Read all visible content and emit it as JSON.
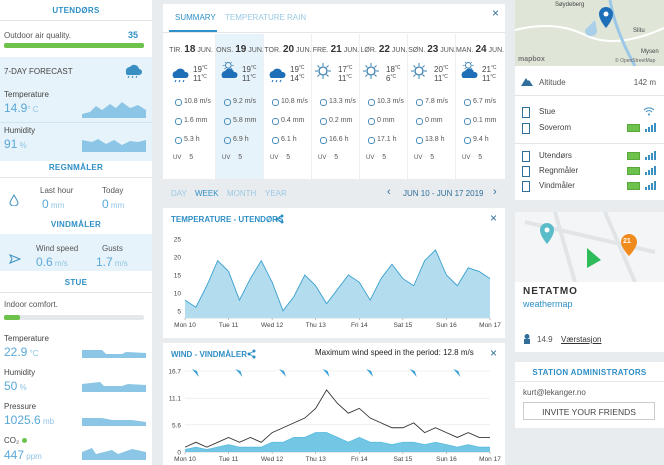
{
  "left": {
    "outdoor": {
      "title": "UTENDØRS",
      "air_quality_label": "Outdoor air quality.",
      "air_quality": 35,
      "forecast_label": "7-DAY FORECAST",
      "temperature_label": "Temperature",
      "temperature": 14.9,
      "temperature_unit": "° C",
      "humidity_label": "Humidity",
      "humidity": 91,
      "humidity_unit": "%"
    },
    "rain": {
      "title": "REGNMÅLER",
      "last_hour_label": "Last hour",
      "last_hour": 0,
      "today_label": "Today",
      "today": 0,
      "unit": "mm"
    },
    "wind": {
      "title": "VINDMÅLER",
      "speed_label": "Wind speed",
      "speed": 0.6,
      "gusts_label": "Gusts",
      "gusts": 1.7,
      "unit": "m/s"
    },
    "indoor": {
      "title": "STUE",
      "comfort_label": "Indoor comfort.",
      "temperature_label": "Temperature",
      "temperature": 22.9,
      "temperature_unit": "°C",
      "humidity_label": "Humidity",
      "humidity": 50,
      "humidity_unit": "%",
      "pressure_label": "Pressure",
      "pressure": 1025.6,
      "pressure_unit": "mb",
      "co2_label": "CO₂",
      "co2": 447,
      "co2_unit": "ppm"
    }
  },
  "forecast": {
    "tabs": [
      "SUMMARY",
      "TEMPERATURE",
      "RAIN"
    ],
    "close": "×",
    "units": {
      "temp": "°C",
      "wind": "m/s",
      "rain": "mm",
      "sun": "h",
      "uv": "UV"
    },
    "days": [
      {
        "weekday": "TIR.",
        "day": 18,
        "month": "JUN.",
        "high": 19,
        "low": 11,
        "wind": 10.8,
        "rain": 1.6,
        "sun": 5.3,
        "uv": 5
      },
      {
        "weekday": "ONS.",
        "day": 19,
        "month": "JUN.",
        "high": 19,
        "low": 11,
        "wind": 9.2,
        "rain": 5.8,
        "sun": 6.9,
        "uv": 5
      },
      {
        "weekday": "TOR.",
        "day": 20,
        "month": "JUN.",
        "high": 19,
        "low": 14,
        "wind": 10.8,
        "rain": 0.4,
        "sun": 6.1,
        "uv": 5
      },
      {
        "weekday": "FRE.",
        "day": 21,
        "month": "JUN.",
        "high": 17,
        "low": 11,
        "wind": 13.3,
        "rain": 0.2,
        "sun": 16.6,
        "uv": 5
      },
      {
        "weekday": "LØR.",
        "day": 22,
        "month": "JUN.",
        "high": 18,
        "low": 6,
        "wind": 10.3,
        "rain": 0,
        "sun": 17.1,
        "uv": 5
      },
      {
        "weekday": "SØN.",
        "day": 23,
        "month": "JUN.",
        "high": 20,
        "low": 11,
        "wind": 7.8,
        "rain": 0,
        "sun": 13.8,
        "uv": 5
      },
      {
        "weekday": "MAN.",
        "day": 24,
        "month": "JUN.",
        "high": 21,
        "low": 11,
        "wind": 6.7,
        "rain": 0.1,
        "sun": 9.4,
        "uv": 5
      }
    ]
  },
  "period": {
    "tabs": [
      "DAY",
      "WEEK",
      "MONTH",
      "YEAR"
    ],
    "range": "JUN 10 - JUN 17 2019"
  },
  "chart_data": [
    {
      "type": "area",
      "title": "TEMPERATURE - UTENDØRS",
      "color": "#3aa1cf",
      "fill": "#b3dcee",
      "x": [
        0,
        0.25,
        0.5,
        0.75,
        1,
        1.25,
        1.5,
        1.75,
        2,
        2.25,
        2.5,
        2.75,
        3,
        3.25,
        3.5,
        3.75,
        4,
        4.25,
        4.5,
        4.75,
        5,
        5.25,
        5.5,
        5.75,
        6,
        6.25,
        6.5,
        6.75,
        7
      ],
      "values": [
        8,
        6,
        12,
        19,
        16,
        8,
        14,
        19,
        13,
        5,
        9,
        15,
        12,
        7,
        11,
        15,
        13,
        8,
        14,
        18,
        14,
        12,
        19,
        22,
        15,
        12,
        17,
        16,
        14
      ],
      "xlim": [
        0,
        7
      ],
      "ylim": [
        3,
        27
      ],
      "yticks": [
        5,
        10,
        15,
        20,
        25
      ],
      "xticks": [
        {
          "value": 0,
          "label": "Mon 10"
        },
        {
          "value": 1,
          "label": "Tue 11"
        },
        {
          "value": 2,
          "label": "Wed 12"
        },
        {
          "value": 3,
          "label": "Thu 13"
        },
        {
          "value": 4,
          "label": "Fri 14"
        },
        {
          "value": 5,
          "label": "Sat 15"
        },
        {
          "value": 6,
          "label": "Sun 16"
        },
        {
          "value": 7,
          "label": "Mon 17"
        }
      ],
      "grid": false
    },
    {
      "type": "line",
      "title": "WIND - VINDMÅLER",
      "annotation": "Maximum wind speed in the period: 12.8 m/s",
      "x": [
        0,
        0.25,
        0.5,
        0.75,
        1,
        1.25,
        1.5,
        1.75,
        2,
        2.25,
        2.5,
        2.75,
        3,
        3.25,
        3.5,
        3.75,
        4,
        4.25,
        4.5,
        4.75,
        5,
        5.25,
        5.5,
        5.75,
        6,
        6.25,
        6.5,
        6.75,
        7
      ],
      "series": [
        {
          "color": "#5bbde0",
          "area": true,
          "values": [
            0.5,
            1,
            0.5,
            1,
            1.5,
            1,
            1,
            1,
            2,
            2,
            3,
            3,
            4,
            4,
            3,
            2,
            3,
            2,
            2,
            1.5,
            2,
            2,
            1.5,
            2,
            1.5,
            1,
            1.5,
            1,
            1
          ]
        },
        {
          "color": "#333333",
          "area": false,
          "values": [
            1,
            2,
            1,
            2,
            3,
            2,
            3,
            2,
            4,
            5,
            6,
            7,
            9,
            12.8,
            10,
            8,
            9,
            7,
            6,
            5,
            5,
            6,
            4,
            5,
            4,
            3,
            4,
            3,
            3
          ]
        }
      ],
      "xlim": [
        0,
        7
      ],
      "ylim": [
        0,
        16.7
      ],
      "yticks": [
        0,
        5.6,
        11.1,
        16.7
      ],
      "xticks": [
        {
          "value": 0,
          "label": "Mon 10"
        },
        {
          "value": 1,
          "label": "Tue 11"
        },
        {
          "value": 2,
          "label": "Wed 12"
        },
        {
          "value": 3,
          "label": "Thu 13"
        },
        {
          "value": 4,
          "label": "Fri 14"
        },
        {
          "value": 5,
          "label": "Sat 15"
        },
        {
          "value": 6,
          "label": "Sun 16"
        },
        {
          "value": 7,
          "label": "Mon 17"
        }
      ],
      "grid": true
    }
  ],
  "station": {
    "map_labels": [
      "Søydeberg",
      "Slitu",
      "Mysen"
    ],
    "mapbox": "mapbox",
    "copyright": "© OpenStreetMap",
    "altitude_label": "Altitude",
    "altitude": "142 m",
    "modules_indoor": [
      "Stue",
      "Soverom"
    ],
    "modules_outdoor": [
      "Utendørs",
      "Regnmåler",
      "Vindmåler"
    ],
    "weathermap_badge": 21,
    "brand": "NETATMO",
    "brand_sub": "weathermap",
    "temperature": 14.9,
    "station_type": "Værstasjon",
    "admin_title": "STATION ADMINISTRATORS",
    "admin_email": "kurt@lekanger.no",
    "invite": "INVITE YOUR FRIENDS"
  }
}
